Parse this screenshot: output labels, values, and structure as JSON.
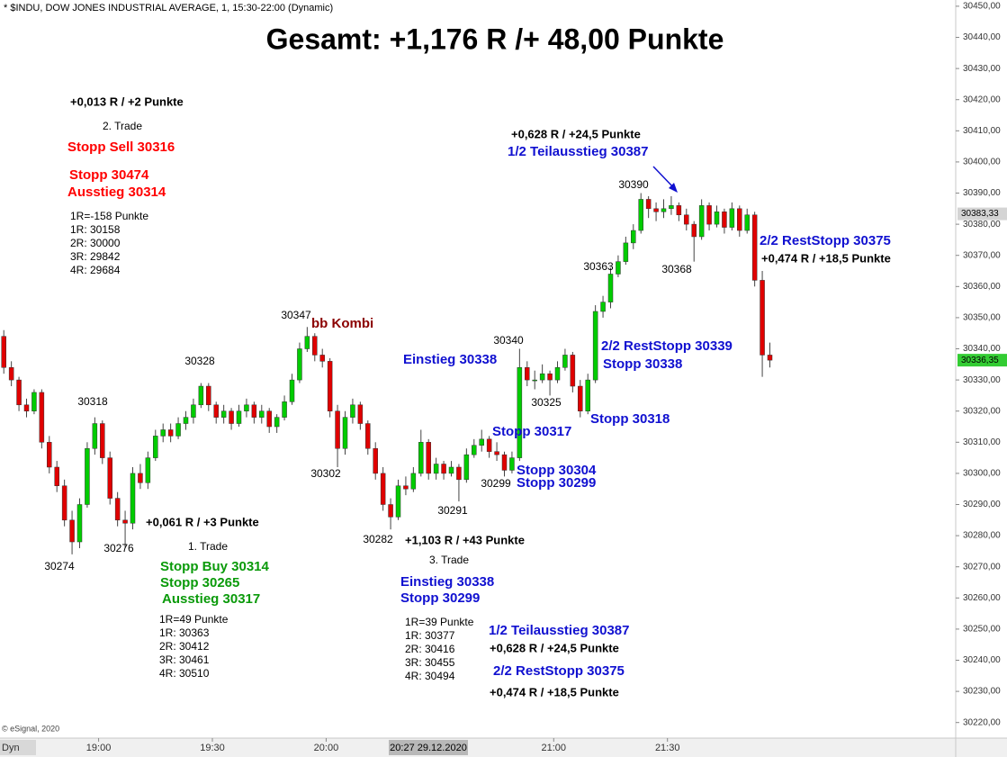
{
  "chart_data": {
    "type": "candlestick",
    "title": "* $INDU, DOW JONES INDUSTRIAL AVERAGE, 1, 15:30-22:00 (Dynamic)",
    "subtitle": "Gesamt: +1,176 R /+ 48,00 Punkte",
    "copyright": "© eSignal, 2020",
    "toolbar_label": "Dyn",
    "crosshair_label": "20:27 29.12.2020",
    "x": [
      "18:35",
      "18:37",
      "18:39",
      "18:41",
      "18:43",
      "18:45",
      "18:47",
      "18:49",
      "18:51",
      "18:53",
      "18:55",
      "18:57",
      "18:59",
      "19:01",
      "19:03",
      "19:05",
      "19:07",
      "19:09",
      "19:11",
      "19:13",
      "19:15",
      "19:17",
      "19:19",
      "19:21",
      "19:23",
      "19:25",
      "19:27",
      "19:29",
      "19:31",
      "19:33",
      "19:35",
      "19:37",
      "19:39",
      "19:41",
      "19:43",
      "19:45",
      "19:47",
      "19:49",
      "19:51",
      "19:53",
      "19:55",
      "19:57",
      "19:59",
      "20:01",
      "20:03",
      "20:05",
      "20:07",
      "20:09",
      "20:11",
      "20:13",
      "20:15",
      "20:17",
      "20:19",
      "20:21",
      "20:23",
      "20:25",
      "20:27",
      "20:29",
      "20:31",
      "20:33",
      "20:35",
      "20:37",
      "20:39",
      "20:41",
      "20:43",
      "20:45",
      "20:47",
      "20:49",
      "20:51",
      "20:53",
      "20:55",
      "20:57",
      "20:59",
      "21:01",
      "21:03",
      "21:05",
      "21:07",
      "21:09",
      "21:11",
      "21:13",
      "21:15",
      "21:17",
      "21:19",
      "21:21",
      "21:23",
      "21:25",
      "21:27",
      "21:29",
      "21:31",
      "21:33",
      "21:35",
      "21:37",
      "21:39",
      "21:41",
      "21:43",
      "21:45",
      "21:47",
      "21:49",
      "21:51",
      "21:53",
      "21:55",
      "21:57"
    ],
    "series": [
      {
        "name": "$INDU",
        "up_color": "#00cc00",
        "down_color": "#e00000",
        "open": [
          30344,
          30334,
          30330,
          30322,
          30320,
          30326,
          30310,
          30302,
          30296,
          30285,
          30278,
          30290,
          30308,
          30316,
          30305,
          30292,
          30285,
          30284,
          30300,
          30297,
          30305,
          30312,
          30314,
          30312,
          30316,
          30318,
          30322,
          30328,
          30322,
          30318,
          30320,
          30316,
          30320,
          30322,
          30318,
          30320,
          30315,
          30318,
          30323,
          30330,
          30340,
          30344,
          30338,
          30336,
          30320,
          30308,
          30318,
          30322,
          30316,
          30308,
          30300,
          30290,
          30286,
          30296,
          30295,
          30300,
          30310,
          30300,
          30303,
          30300,
          30302,
          30298,
          30306,
          30309,
          30311,
          30307,
          30306,
          30301,
          30305,
          30334,
          30330,
          30330,
          30332,
          30330,
          30334,
          30338,
          30328,
          30320,
          30330,
          30352,
          30355,
          30364,
          30368,
          30374,
          30378,
          30388,
          30385,
          30384,
          30385,
          30386,
          30383,
          30380,
          30376,
          30386,
          30380,
          30384,
          30379,
          30385,
          30378,
          30383,
          30362,
          30338
        ],
        "high": [
          30346,
          30336,
          30331,
          30324,
          30327,
          30327,
          30312,
          30304,
          30298,
          30288,
          30292,
          30310,
          30318,
          30317,
          30307,
          30294,
          30288,
          30302,
          30303,
          30307,
          30314,
          30316,
          30316,
          30318,
          30320,
          30324,
          30329,
          30329,
          30323,
          30322,
          30321,
          30322,
          30324,
          30323,
          30322,
          30321,
          30319,
          30325,
          30332,
          30342,
          30347,
          30345,
          30340,
          30337,
          30322,
          30320,
          30324,
          30323,
          30317,
          30310,
          30302,
          30292,
          30298,
          30299,
          30302,
          30314,
          30311,
          30305,
          30304,
          30304,
          30303,
          30308,
          30311,
          30314,
          30312,
          30310,
          30307,
          30307,
          30340,
          30336,
          30333,
          30335,
          30333,
          30336,
          30340,
          30339,
          30330,
          30332,
          30354,
          30357,
          30366,
          30370,
          30376,
          30380,
          30390,
          30389,
          30387,
          30388,
          30389,
          30387,
          30385,
          30381,
          30388,
          30387,
          30386,
          30385,
          30387,
          30386,
          30385,
          30384,
          30365,
          30342
        ],
        "low": [
          30332,
          30328,
          30320,
          30318,
          30319,
          30308,
          30300,
          30294,
          30283,
          30274,
          30276,
          30289,
          30306,
          30303,
          30290,
          30283,
          30276,
          30282,
          30295,
          30295,
          30304,
          30310,
          30310,
          30311,
          30314,
          30316,
          30321,
          30320,
          30316,
          30316,
          30314,
          30315,
          30318,
          30316,
          30316,
          30313,
          30313,
          30317,
          30322,
          30329,
          30339,
          30336,
          30334,
          30318,
          30302,
          30306,
          30316,
          30314,
          30306,
          30298,
          30288,
          30282,
          30285,
          30293,
          30294,
          30299,
          30298,
          30298,
          30298,
          30299,
          30291,
          30297,
          30305,
          30307,
          30305,
          30304,
          30299,
          30300,
          30304,
          30328,
          30327,
          30329,
          30325,
          30329,
          30333,
          30326,
          30318,
          30319,
          30329,
          30350,
          30353,
          30363,
          30367,
          30372,
          30377,
          30382,
          30381,
          30382,
          30383,
          30381,
          30378,
          30368,
          30375,
          30378,
          30379,
          30377,
          30378,
          30376,
          30377,
          30360,
          30331,
          30334
        ],
        "close": [
          30334,
          30330,
          30322,
          30320,
          30326,
          30310,
          30302,
          30296,
          30285,
          30278,
          30290,
          30308,
          30316,
          30305,
          30292,
          30285,
          30284,
          30300,
          30297,
          30305,
          30312,
          30314,
          30312,
          30316,
          30318,
          30322,
          30328,
          30322,
          30318,
          30320,
          30316,
          30320,
          30322,
          30318,
          30320,
          30315,
          30318,
          30323,
          30330,
          30340,
          30344,
          30338,
          30336,
          30320,
          30308,
          30318,
          30322,
          30316,
          30308,
          30300,
          30290,
          30286,
          30296,
          30295,
          30300,
          30310,
          30300,
          30303,
          30300,
          30302,
          30298,
          30306,
          30309,
          30311,
          30307,
          30306,
          30301,
          30305,
          30334,
          30330,
          30330,
          30332,
          30330,
          30334,
          30338,
          30328,
          30320,
          30330,
          30352,
          30355,
          30364,
          30368,
          30374,
          30378,
          30388,
          30385,
          30384,
          30385,
          30386,
          30383,
          30380,
          30376,
          30386,
          30380,
          30384,
          30379,
          30385,
          30378,
          30383,
          30362,
          30338,
          30336.35
        ]
      }
    ],
    "xlim": [
      "18:34",
      "22:46"
    ],
    "xticks": [
      "19:00",
      "19:30",
      "20:00",
      "21:00",
      "21:30"
    ],
    "ylim": [
      30215,
      30452
    ],
    "yticks": [
      {
        "value": 30220,
        "label": "30220,00"
      },
      {
        "value": 30230,
        "label": "30230,00"
      },
      {
        "value": 30240,
        "label": "30240,00"
      },
      {
        "value": 30250,
        "label": "30250,00"
      },
      {
        "value": 30260,
        "label": "30260,00"
      },
      {
        "value": 30270,
        "label": "30270,00"
      },
      {
        "value": 30280,
        "label": "30280,00"
      },
      {
        "value": 30290,
        "label": "30290,00"
      },
      {
        "value": 30300,
        "label": "30300,00"
      },
      {
        "value": 30310,
        "label": "30310,00"
      },
      {
        "value": 30320,
        "label": "30320,00"
      },
      {
        "value": 30330,
        "label": "30330,00"
      },
      {
        "value": 30340,
        "label": "30340,00"
      },
      {
        "value": 30350,
        "label": "30350,00"
      },
      {
        "value": 30360,
        "label": "30360,00"
      },
      {
        "value": 30370,
        "label": "30370,00"
      },
      {
        "value": 30380,
        "label": "30380,00"
      },
      {
        "value": 30390,
        "label": "30390,00"
      },
      {
        "value": 30400,
        "label": "30400,00"
      },
      {
        "value": 30410,
        "label": "30410,00"
      },
      {
        "value": 30420,
        "label": "30420,00"
      },
      {
        "value": 30430,
        "label": "30430,00"
      },
      {
        "value": 30440,
        "label": "30440,00"
      },
      {
        "value": 30450,
        "label": "30450,00"
      }
    ],
    "price_markers": [
      {
        "value": 30383.33,
        "label": "30383,33",
        "color": "#d4d4d4"
      },
      {
        "value": 30336.35,
        "label": "30336,35",
        "color": "#33cc33"
      }
    ],
    "grid": false,
    "point_labels": [
      "30274",
      "30276",
      "30318",
      "30328",
      "30347",
      "30302",
      "30282",
      "30291",
      "30299",
      "30340",
      "30325",
      "30363",
      "30390",
      "30368"
    ],
    "annotations": [
      {
        "text": "+0,013 R / +2 Punkte"
      },
      {
        "text": "2. Trade"
      },
      {
        "text": "Stopp Sell 30316",
        "color": "#ff0000"
      },
      {
        "text": "Stopp 30474",
        "color": "#ff0000"
      },
      {
        "text": "Ausstieg 30314",
        "color": "#ff0000"
      },
      {
        "text": "1R=-158 Punkte"
      },
      {
        "text": "1R: 30158"
      },
      {
        "text": "2R: 30000"
      },
      {
        "text": "3R: 29842"
      },
      {
        "text": "4R: 29684"
      },
      {
        "text": "bb Kombi",
        "color": "#8b0000"
      },
      {
        "text": "+0,628 R / +24,5 Punkte"
      },
      {
        "text": "1/2 Teilausstieg 30387",
        "color": "#1010d0"
      },
      {
        "text": "2/2 RestStopp 30375",
        "color": "#1010d0"
      },
      {
        "text": "+0,474 R / +18,5 Punkte"
      },
      {
        "text": "Einstieg 30338",
        "color": "#1010d0"
      },
      {
        "text": "2/2 RestStopp 30339",
        "color": "#1010d0"
      },
      {
        "text": "Stopp 30338",
        "color": "#1010d0"
      },
      {
        "text": "Stopp 30318",
        "color": "#1010d0"
      },
      {
        "text": "Stopp 30317",
        "color": "#1010d0"
      },
      {
        "text": "Stopp 30304",
        "color": "#1010d0"
      },
      {
        "text": "Stopp 30299",
        "color": "#1010d0"
      },
      {
        "text": "+0,061 R / +3 Punkte"
      },
      {
        "text": "1. Trade"
      },
      {
        "text": "Stopp Buy 30314",
        "color": "#0a9a0a"
      },
      {
        "text": "Stopp 30265",
        "color": "#0a9a0a"
      },
      {
        "text": "Ausstieg 30317",
        "color": "#0a9a0a"
      },
      {
        "text": "1R=49 Punkte"
      },
      {
        "text": "1R: 30363"
      },
      {
        "text": "2R: 30412"
      },
      {
        "text": "3R: 30461"
      },
      {
        "text": "4R: 30510"
      },
      {
        "text": "+1,103 R / +43 Punkte"
      },
      {
        "text": "3. Trade"
      },
      {
        "text": "Einstieg 30338",
        "color": "#1010d0"
      },
      {
        "text": "Stopp 30299",
        "color": "#1010d0"
      },
      {
        "text": "1R=39 Punkte"
      },
      {
        "text": "1R: 30377"
      },
      {
        "text": "2R: 30416"
      },
      {
        "text": "3R: 30455"
      },
      {
        "text": "4R: 30494"
      },
      {
        "text": "1/2 Teilausstieg 30387",
        "color": "#1010d0"
      },
      {
        "text": "+0,628 R / +24,5 Punkte"
      },
      {
        "text": "2/2 RestStopp 30375",
        "color": "#1010d0"
      },
      {
        "text": "+0,474 R / +18,5 Punkte"
      }
    ]
  }
}
